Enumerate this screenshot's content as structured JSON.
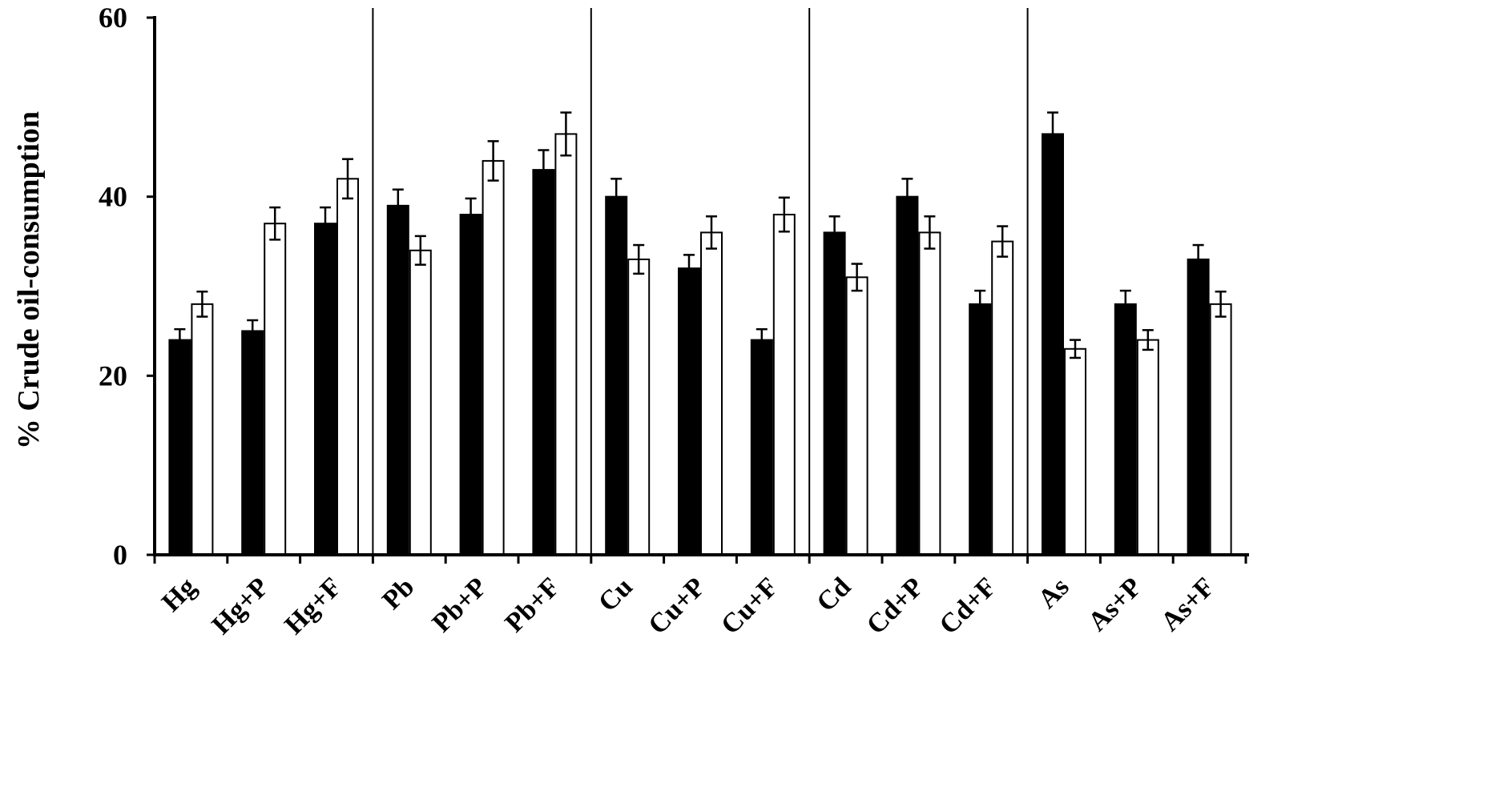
{
  "chart_data": {
    "type": "bar",
    "title": "",
    "xlabel": "",
    "ylabel": "% Crude oil-consumption",
    "ylim": [
      0,
      60
    ],
    "yticks": [
      "0",
      "20",
      "40",
      "60"
    ],
    "grid": false,
    "legend": "none",
    "categories": [
      "Hg",
      "Hg+P",
      "Hg+F",
      "Pb",
      "Pb+P",
      "Pb+F",
      "Cu",
      "Cu+P",
      "Cu+F",
      "Cd",
      "Cd+P",
      "Cd+F",
      "As",
      "As+P",
      "As+F"
    ],
    "group_separators_after": [
      2,
      5,
      8,
      11
    ],
    "series": [
      {
        "color": "#000000",
        "values": [
          24,
          25,
          37,
          39,
          38,
          43,
          40,
          32,
          24,
          36,
          40,
          28,
          47,
          28,
          33
        ],
        "errors": [
          1.2,
          1.2,
          1.8,
          1.8,
          1.8,
          2.2,
          2.0,
          1.5,
          1.2,
          1.8,
          2.0,
          1.5,
          2.4,
          1.5,
          1.6
        ]
      },
      {
        "color": "#ffffff",
        "values": [
          28,
          37,
          42,
          34,
          44,
          47,
          33,
          36,
          38,
          31,
          36,
          35,
          23,
          24,
          28
        ],
        "errors": [
          1.4,
          1.8,
          2.2,
          1.6,
          2.2,
          2.4,
          1.6,
          1.8,
          1.9,
          1.5,
          1.8,
          1.7,
          1.0,
          1.1,
          1.4
        ]
      }
    ]
  }
}
